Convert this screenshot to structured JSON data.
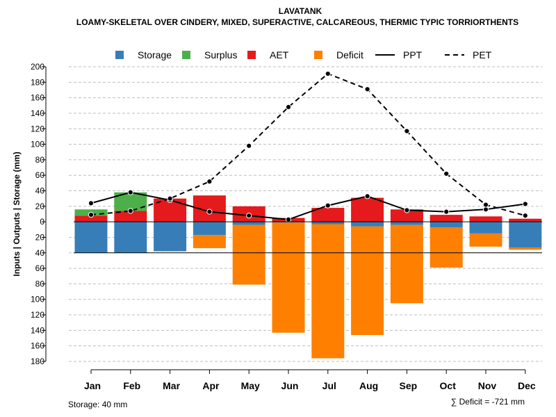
{
  "chart_data": {
    "type": "bar",
    "title": "LAVATANK",
    "subtitle": "LOAMY-SKELETAL OVER CINDERY, MIXED, SUPERACTIVE, CALCAREOUS, THERMIC TYPIC TORRIORTHENTS",
    "ylabel": "Inputs | Outputs | Storage    (mm)",
    "categories": [
      "Jan",
      "Feb",
      "Mar",
      "Apr",
      "May",
      "Jun",
      "Jul",
      "Aug",
      "Sep",
      "Oct",
      "Nov",
      "Dec"
    ],
    "ylim": [
      -180,
      200
    ],
    "y_ticks": [
      200,
      180,
      160,
      140,
      120,
      100,
      80,
      60,
      40,
      20,
      0,
      -20,
      -40,
      -60,
      -80,
      -100,
      -120,
      -140,
      -160,
      -180
    ],
    "y_tick_labels": [
      "200",
      "180",
      "160",
      "140",
      "120",
      "100",
      "80",
      "60",
      "40",
      "20",
      "0",
      "20",
      "40",
      "60",
      "80",
      "100",
      "120",
      "140",
      "160",
      "180"
    ],
    "grid": true,
    "legend": {
      "position": "top",
      "items": [
        {
          "label": "Storage",
          "kind": "box",
          "color": "#377eb8"
        },
        {
          "label": "Surplus",
          "kind": "box",
          "color": "#4daf4a"
        },
        {
          "label": "AET",
          "kind": "box",
          "color": "#e41a1c"
        },
        {
          "label": "Deficit",
          "kind": "box",
          "color": "#ff7f00"
        },
        {
          "label": "PPT",
          "kind": "solid"
        },
        {
          "label": "PET",
          "kind": "dashed"
        }
      ]
    },
    "series": [
      {
        "name": "AET",
        "color": "#e41a1c",
        "values": [
          8,
          14,
          30,
          34,
          20,
          5,
          18,
          31,
          16,
          9,
          7,
          4
        ]
      },
      {
        "name": "Surplus",
        "color": "#4daf4a",
        "values": [
          8,
          24,
          0,
          0,
          0,
          0,
          0,
          0,
          0,
          0,
          0,
          0
        ]
      },
      {
        "name": "Storage",
        "color": "#377eb8",
        "values": [
          -40,
          -40,
          -38,
          -17,
          -4,
          -1,
          -3,
          -6,
          -4,
          -7,
          -15,
          -33
        ]
      },
      {
        "name": "Deficit",
        "color": "#ff7f00",
        "values": [
          0,
          0,
          0,
          -17,
          -77,
          -142,
          -173,
          -140,
          -101,
          -52,
          -17,
          -3
        ]
      },
      {
        "name": "PPT",
        "style": "solid",
        "values": [
          24,
          38,
          28,
          13,
          8,
          3,
          21,
          33,
          15,
          13,
          16,
          23
        ]
      },
      {
        "name": "PET",
        "style": "dashed",
        "values": [
          9,
          14,
          30,
          52,
          98,
          148,
          191,
          171,
          117,
          62,
          22,
          8
        ]
      }
    ],
    "storage_capacity": -40,
    "storage_note": "Storage: 40 mm",
    "deficit_note": "∑ Deficit = -721 mm"
  }
}
